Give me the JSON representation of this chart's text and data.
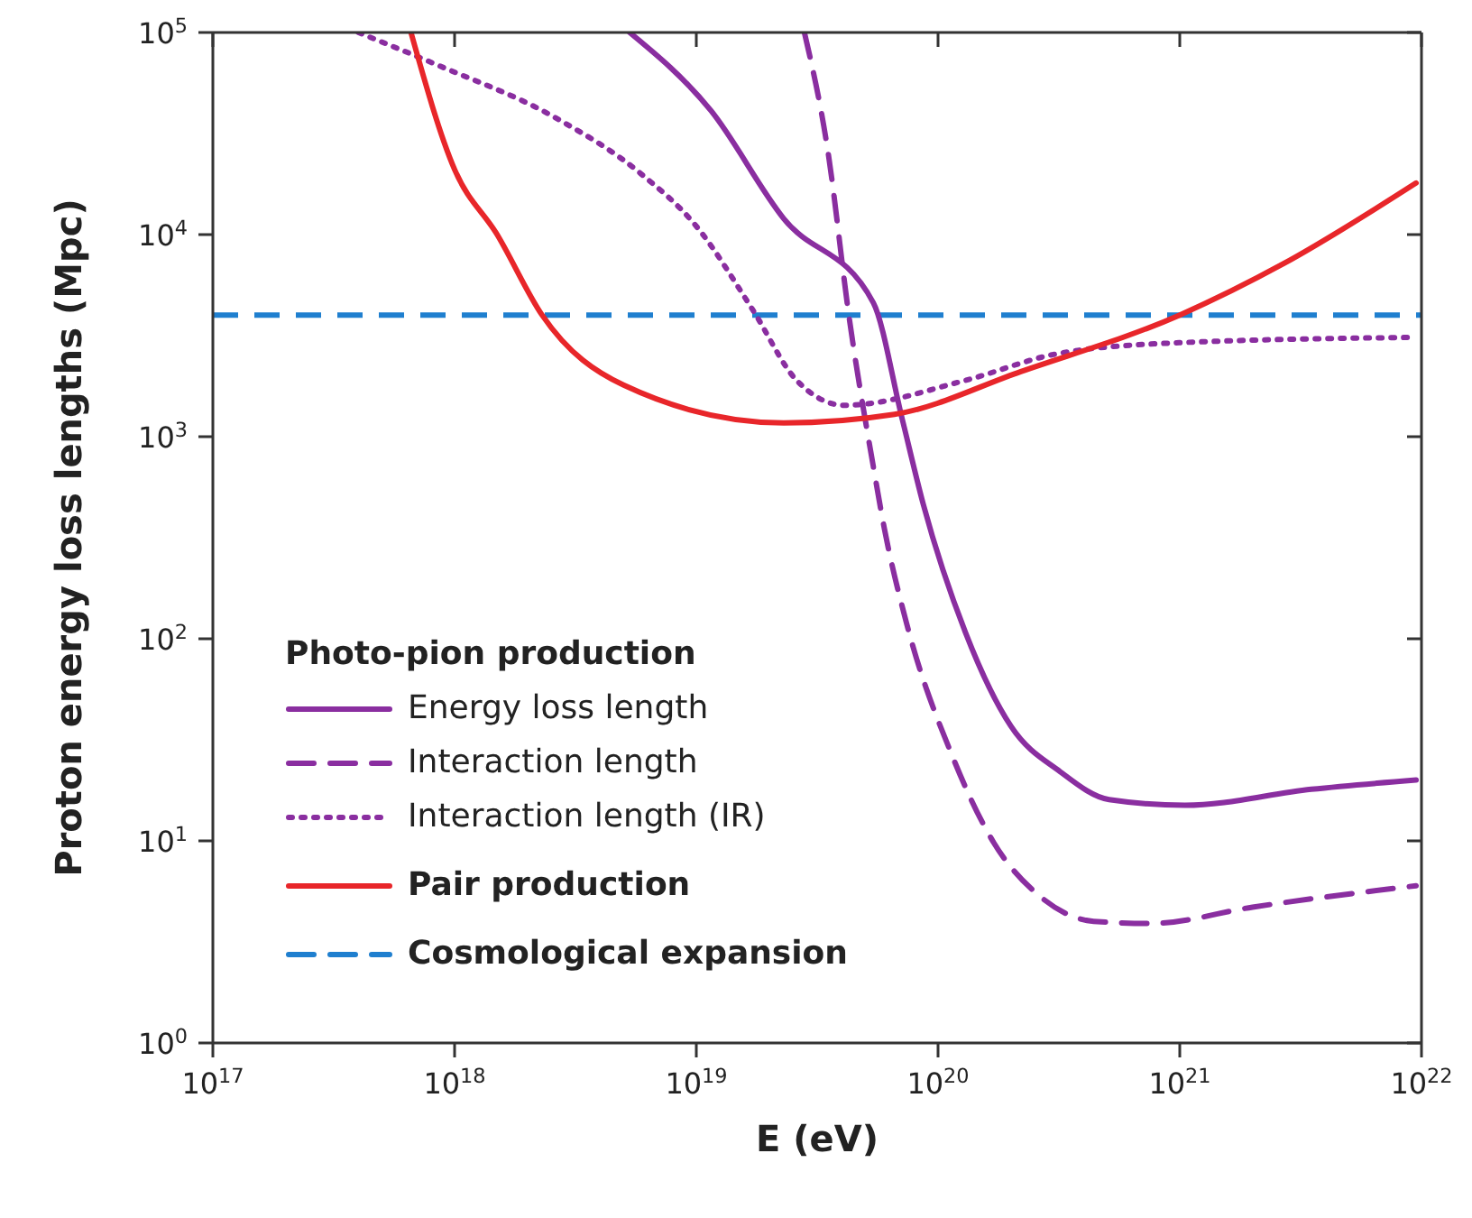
{
  "chart_data": {
    "type": "line",
    "xlabel": "E (eV)",
    "ylabel": "Proton energy loss lengths (Mpc)",
    "log": "xy",
    "xlim": [
      1e+17,
      1e+22
    ],
    "ylim": [
      1,
      100000
    ],
    "xticks": [
      {
        "value": 1e+17,
        "label": "10$^{17}$"
      },
      {
        "value": 1e+18,
        "label": "10$^{18}$"
      },
      {
        "value": 1e+19,
        "label": "10$^{19}$"
      },
      {
        "value": 1e+20,
        "label": "10$^{20}$"
      },
      {
        "value": 1e+21,
        "label": "10$^{21}$"
      },
      {
        "value": 1e+22,
        "label": "10$^{22}$"
      }
    ],
    "yticks": [
      {
        "value": 1,
        "label": "10$^{0}$"
      },
      {
        "value": 10,
        "label": "10$^{1}$"
      },
      {
        "value": 100,
        "label": "10$^{2}$"
      },
      {
        "value": 1000,
        "label": "10$^{3}$"
      },
      {
        "value": 10000,
        "label": "10$^{4}$"
      },
      {
        "value": 100000,
        "label": "10$^{5}$"
      }
    ],
    "legend": "bottom left",
    "legend_title": "Photo-pion production",
    "series": [
      {
        "name": "Energy loss length",
        "color": "#8a2ea0",
        "line_style": "solid",
        "x": [
          5.3e+18,
          1.15e+19,
          2.3e+19,
          5.4e+19,
          7.1e+19,
          8.7e+19,
          1.3e+20,
          2e+20,
          3.2e+20,
          5.1e+20,
          1.05e+21,
          3.5e+21,
          9.5e+21
        ],
        "values": [
          100000,
          41000,
          12000,
          4600,
          1230,
          460,
          107,
          37,
          22,
          16,
          15,
          18,
          20
        ]
      },
      {
        "name": "Interaction length",
        "color": "#8a2ea0",
        "line_style": "dashed",
        "x": [
          2.8e+19,
          3.5e+19,
          4.3e+19,
          5.4e+19,
          6e+19,
          7.4e+19,
          1.15e+20,
          1.7e+20,
          2.6e+20,
          4.4e+20,
          7.6e+20,
          2e+21,
          9.5e+21
        ],
        "values": [
          100000,
          26000,
          3800,
          710,
          350,
          120,
          26,
          9.8,
          5.4,
          4.0,
          3.9,
          4.7,
          6.0
        ]
      },
      {
        "name": "Interaction length (IR)",
        "color": "#8a2ea0",
        "line_style": "dotted",
        "x": [
          4e+17,
          8.5e+17,
          2.6e+18,
          5.9e+18,
          1e+19,
          1.7e+19,
          2.6e+19,
          4.1e+19,
          1.3e+20,
          3e+20,
          8.9e+20,
          9.5e+21
        ],
        "values": [
          100000,
          69000,
          38000,
          20000,
          11000,
          4300,
          1900,
          1430,
          1900,
          2550,
          2900,
          3100
        ]
      },
      {
        "name": "Pair production",
        "color": "#e8262a",
        "line_style": "solid",
        "x": [
          6.6e+17,
          1e+18,
          1.5e+18,
          2.3e+18,
          5e+18,
          2.3e+19,
          6.6e+19,
          2.2e+20,
          1e+21,
          2.7e+21,
          9.5e+21
        ],
        "values": [
          100000,
          21000,
          10000,
          4000,
          1800,
          1170,
          1290,
          2100,
          4000,
          7200,
          18000
        ]
      }
    ],
    "ref_lines": [
      {
        "axis": "y",
        "value": 4000,
        "label": "Cosmological expansion",
        "color": "#1f7fcf",
        "line_style": "dashed"
      }
    ]
  }
}
